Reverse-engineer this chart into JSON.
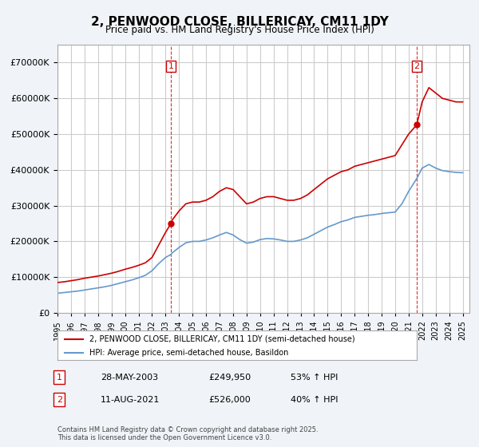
{
  "title": "2, PENWOOD CLOSE, BILLERICAY, CM11 1DY",
  "subtitle": "Price paid vs. HM Land Registry's House Price Index (HPI)",
  "legend_label_red": "2, PENWOOD CLOSE, BILLERICAY, CM11 1DY (semi-detached house)",
  "legend_label_blue": "HPI: Average price, semi-detached house, Basildon",
  "footnote": "Contains HM Land Registry data © Crown copyright and database right 2025.\nThis data is licensed under the Open Government Licence v3.0.",
  "sale1_label": "1",
  "sale1_date": "28-MAY-2003",
  "sale1_price": "£249,950",
  "sale1_hpi": "53% ↑ HPI",
  "sale2_label": "2",
  "sale2_date": "11-AUG-2021",
  "sale2_price": "£526,000",
  "sale2_hpi": "40% ↑ HPI",
  "ylim_max": 750000,
  "yticks": [
    0,
    100000,
    200000,
    300000,
    400000,
    500000,
    600000,
    700000
  ],
  "red_color": "#cc0000",
  "blue_color": "#6699cc",
  "background_color": "#f0f4f8",
  "plot_bg_color": "#ffffff",
  "grid_color": "#cccccc",
  "vline_color": "#cc0000",
  "sale1_year": 2003.4,
  "sale2_year": 2021.6,
  "sale1_marker_price": 249950,
  "sale2_marker_price": 526000,
  "sale1_hpi_price": 163399,
  "sale2_hpi_price": 375714
}
